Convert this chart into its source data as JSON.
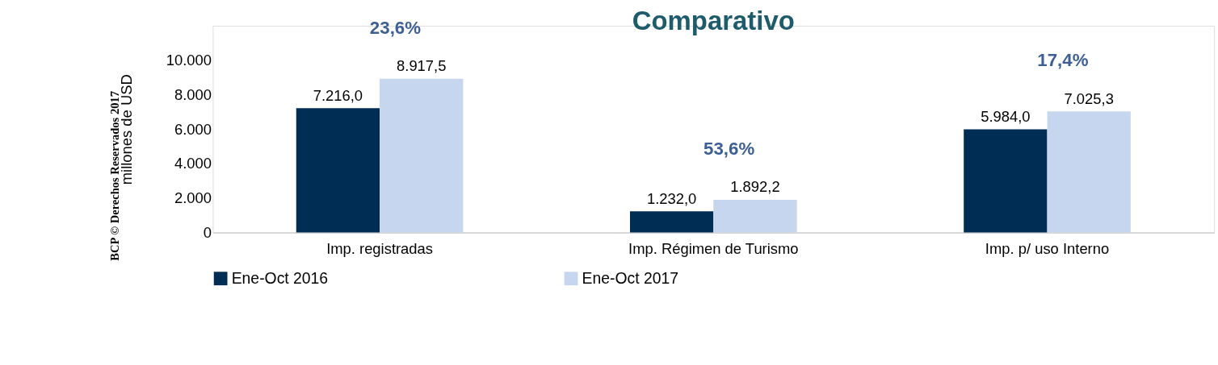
{
  "chart_data": {
    "type": "bar",
    "title": "Comparativo",
    "ylabel": "millones de  USD",
    "categories": [
      "Imp. registradas",
      "Imp. Régimen de Turismo",
      "Imp. p/ uso Interno"
    ],
    "series": [
      {
        "name": "Ene-Oct 2016",
        "color": "#002d54",
        "values": [
          7216.0,
          1232.0,
          5984.0
        ],
        "value_labels": [
          "7.216,0",
          "1.232,0",
          "5.984,0"
        ]
      },
      {
        "name": "Ene-Oct 2017",
        "color": "#c5d6ee",
        "values": [
          8917.5,
          1892.2,
          7025.3
        ],
        "value_labels": [
          "8.917,5",
          "1.892,2",
          "7.025,3"
        ]
      }
    ],
    "ylim": [
      0,
      12000
    ],
    "yticks": [
      {
        "value": 0,
        "label": "0"
      },
      {
        "value": 2000,
        "label": "2.000"
      },
      {
        "value": 4000,
        "label": "4.000"
      },
      {
        "value": 6000,
        "label": "6.000"
      },
      {
        "value": 8000,
        "label": "8.000"
      },
      {
        "value": 10000,
        "label": "10.000"
      }
    ],
    "grid": false,
    "legend": "bottom",
    "annotations": [
      "23,6%",
      "53,6%",
      "17,4%",
      "BCP © Derechos Reservados 2017"
    ]
  }
}
